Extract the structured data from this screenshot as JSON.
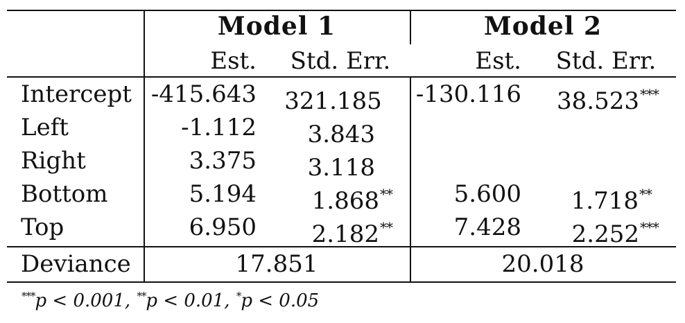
{
  "models": [
    "Model 1",
    "Model 2"
  ],
  "subheaders": [
    "Est.",
    "Std. Err.",
    "Est.",
    "Std. Err."
  ],
  "rows": [
    {
      "label": "Intercept",
      "m1_est": "-415.643",
      "m1_se": "321.185",
      "m1_se_sig": "",
      "m2_est": "-130.116",
      "m2_se": "38.523",
      "m2_se_sig": "***"
    },
    {
      "label": "Left",
      "m1_est": "-1.112",
      "m1_se": "3.843",
      "m1_se_sig": "",
      "m2_est": "",
      "m2_se": "",
      "m2_se_sig": ""
    },
    {
      "label": "Right",
      "m1_est": "3.375",
      "m1_se": "3.118",
      "m1_se_sig": "",
      "m2_est": "",
      "m2_se": "",
      "m2_se_sig": ""
    },
    {
      "label": "Bottom",
      "m1_est": "5.194",
      "m1_se": "1.868",
      "m1_se_sig": "**",
      "m2_est": "5.600",
      "m2_se": "1.718",
      "m2_se_sig": "**"
    },
    {
      "label": "Top",
      "m1_est": "6.950",
      "m1_se": "2.182",
      "m1_se_sig": "**",
      "m2_est": "7.428",
      "m2_se": "2.252",
      "m2_se_sig": "***"
    }
  ],
  "deviance": {
    "label": "Deviance",
    "m1": "17.851",
    "m2": "20.018"
  },
  "footnote": [
    {
      "stars": "***",
      "text": "p < 0.001, "
    },
    {
      "stars": "**",
      "text": "p < 0.01, "
    },
    {
      "stars": "*",
      "text": "p < 0.05"
    }
  ]
}
